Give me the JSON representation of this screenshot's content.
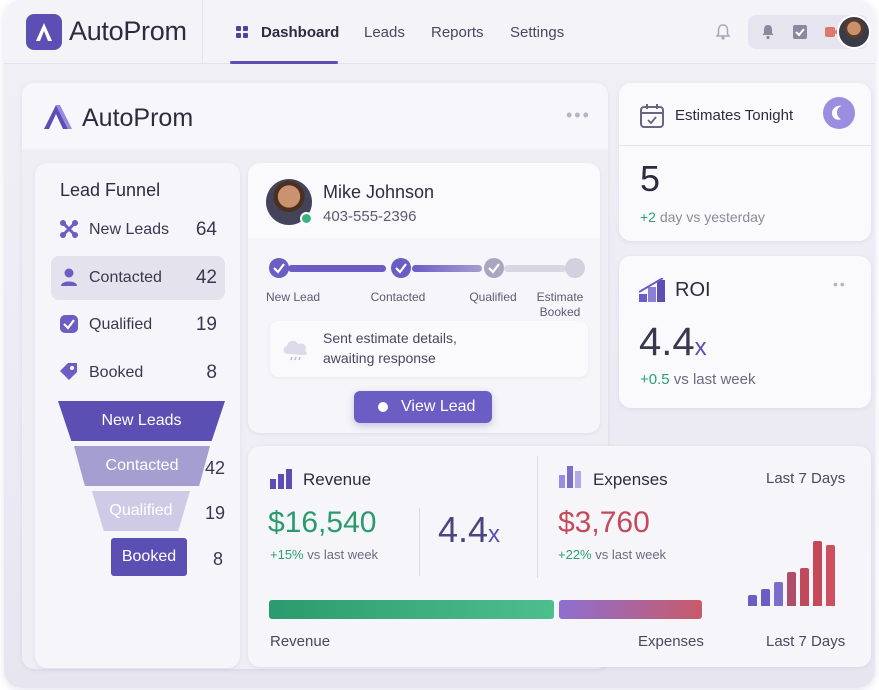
{
  "app": {
    "name": "AutoProm"
  },
  "nav": {
    "items": [
      "Dashboard",
      "Leads",
      "Reports",
      "Settings"
    ]
  },
  "panel": {
    "title": "AutoProm"
  },
  "estimates": {
    "title": "Estimates Tonight",
    "value": "5",
    "delta": "+2",
    "delta_text": "day vs yesterday"
  },
  "roi": {
    "title": "ROI",
    "value": "4.4",
    "suffix": "x",
    "delta": "+0.5",
    "delta_text": "vs last week"
  },
  "funnel": {
    "title": "Lead Funnel",
    "rows": [
      {
        "label": "New Leads",
        "count": "64",
        "icon": "leads-icon"
      },
      {
        "label": "Contacted",
        "count": "42",
        "icon": "person-icon"
      },
      {
        "label": "Qualified",
        "count": "19",
        "icon": "check-shield-icon"
      },
      {
        "label": "Booked",
        "count": "8",
        "icon": "tag-icon"
      }
    ],
    "chart": [
      {
        "label": "New Leads",
        "count": ""
      },
      {
        "label": "Contacted",
        "count": "42"
      },
      {
        "label": "Qualified",
        "count": "19"
      },
      {
        "label": "Booked",
        "count": "8"
      }
    ]
  },
  "lead": {
    "name": "Mike Johnson",
    "phone": "403-555-2396",
    "steps": [
      "New Lead",
      "Contacted",
      "Qualified",
      "Estimate Booked"
    ],
    "note_line1": "Sent estimate details,",
    "note_line2": "awaiting response",
    "action": "View Lead"
  },
  "revenue": {
    "title": "Revenue",
    "value": "$16,540",
    "delta": "+15%",
    "delta_text": "vs last week",
    "ratio": "4.4",
    "ratio_suffix": "x",
    "bar_label": "Revenue",
    "share": 0.67
  },
  "expenses": {
    "title": "Expenses",
    "value": "$3,760",
    "delta": "+22%",
    "delta_text": "vs last week",
    "period": "Last 7 Days",
    "bar_label": "Expenses",
    "bar_period": "Last 7 Days",
    "share": 0.33,
    "mini_bars": [
      0.15,
      0.24,
      0.34,
      0.47,
      0.53,
      0.9,
      0.85
    ]
  },
  "colors": {
    "accent": "#5b4fb3",
    "green": "#2aa073",
    "red": "#c44a5a"
  }
}
